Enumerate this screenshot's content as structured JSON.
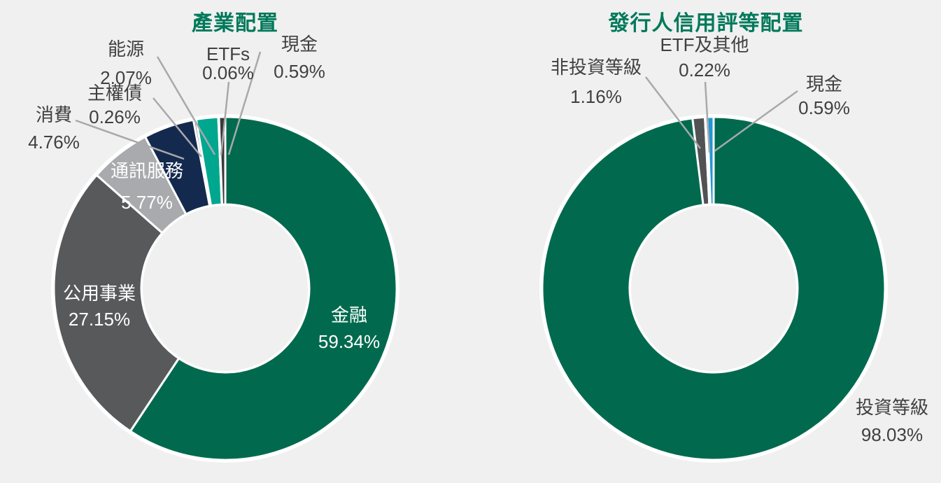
{
  "background_color": "#F0F0F0",
  "text_color": "#404040",
  "leader_line_color": "#A8A9AB",
  "chart_data": [
    {
      "type": "pie",
      "variant": "donut",
      "title": "產業配置",
      "title_color": "#00795B",
      "legend_position": "none",
      "labels_on_chart": true,
      "start_angle_deg": 0,
      "direction": "clockwise",
      "slices": [
        {
          "label": "金融",
          "value": 59.34,
          "display": "59.34%",
          "color": "#016A4E",
          "label_inside": true
        },
        {
          "label": "公用事業",
          "value": 27.15,
          "display": "27.15%",
          "color": "#58595B",
          "label_inside": true
        },
        {
          "label": "通訊服務",
          "value": 5.77,
          "display": "5.77%",
          "color": "#A9AAAD",
          "label_inside": true
        },
        {
          "label": "消費",
          "value": 4.76,
          "display": "4.76%",
          "color": "#14294E",
          "label_inside": false
        },
        {
          "label": "主權債",
          "value": 0.26,
          "display": "0.26%",
          "color": "#7A7B7E",
          "label_inside": false
        },
        {
          "label": "能源",
          "value": 2.07,
          "display": "2.07%",
          "color": "#00A78F",
          "label_inside": false
        },
        {
          "label": "ETFs",
          "value": 0.06,
          "display": "0.06%",
          "color": "#888888",
          "label_inside": false
        },
        {
          "label": "現金",
          "value": 0.59,
          "display": "0.59%",
          "color": "#3A3A3A",
          "label_inside": false
        }
      ]
    },
    {
      "type": "pie",
      "variant": "donut",
      "title": "發行人信用評等配置",
      "title_color": "#00795B",
      "legend_position": "none",
      "labels_on_chart": true,
      "start_angle_deg": 0,
      "direction": "clockwise",
      "slices": [
        {
          "label": "投資等級",
          "value": 98.03,
          "display": "98.03%",
          "color": "#016A4E",
          "label_inside": false
        },
        {
          "label": "非投資等級",
          "value": 1.16,
          "display": "1.16%",
          "color": "#515254",
          "label_inside": false
        },
        {
          "label": "ETF及其他",
          "value": 0.22,
          "display": "0.22%",
          "color": "#9B9B9B",
          "label_inside": false
        },
        {
          "label": "現金",
          "value": 0.59,
          "display": "0.59%",
          "color": "#2196D6",
          "label_inside": false
        }
      ]
    }
  ]
}
